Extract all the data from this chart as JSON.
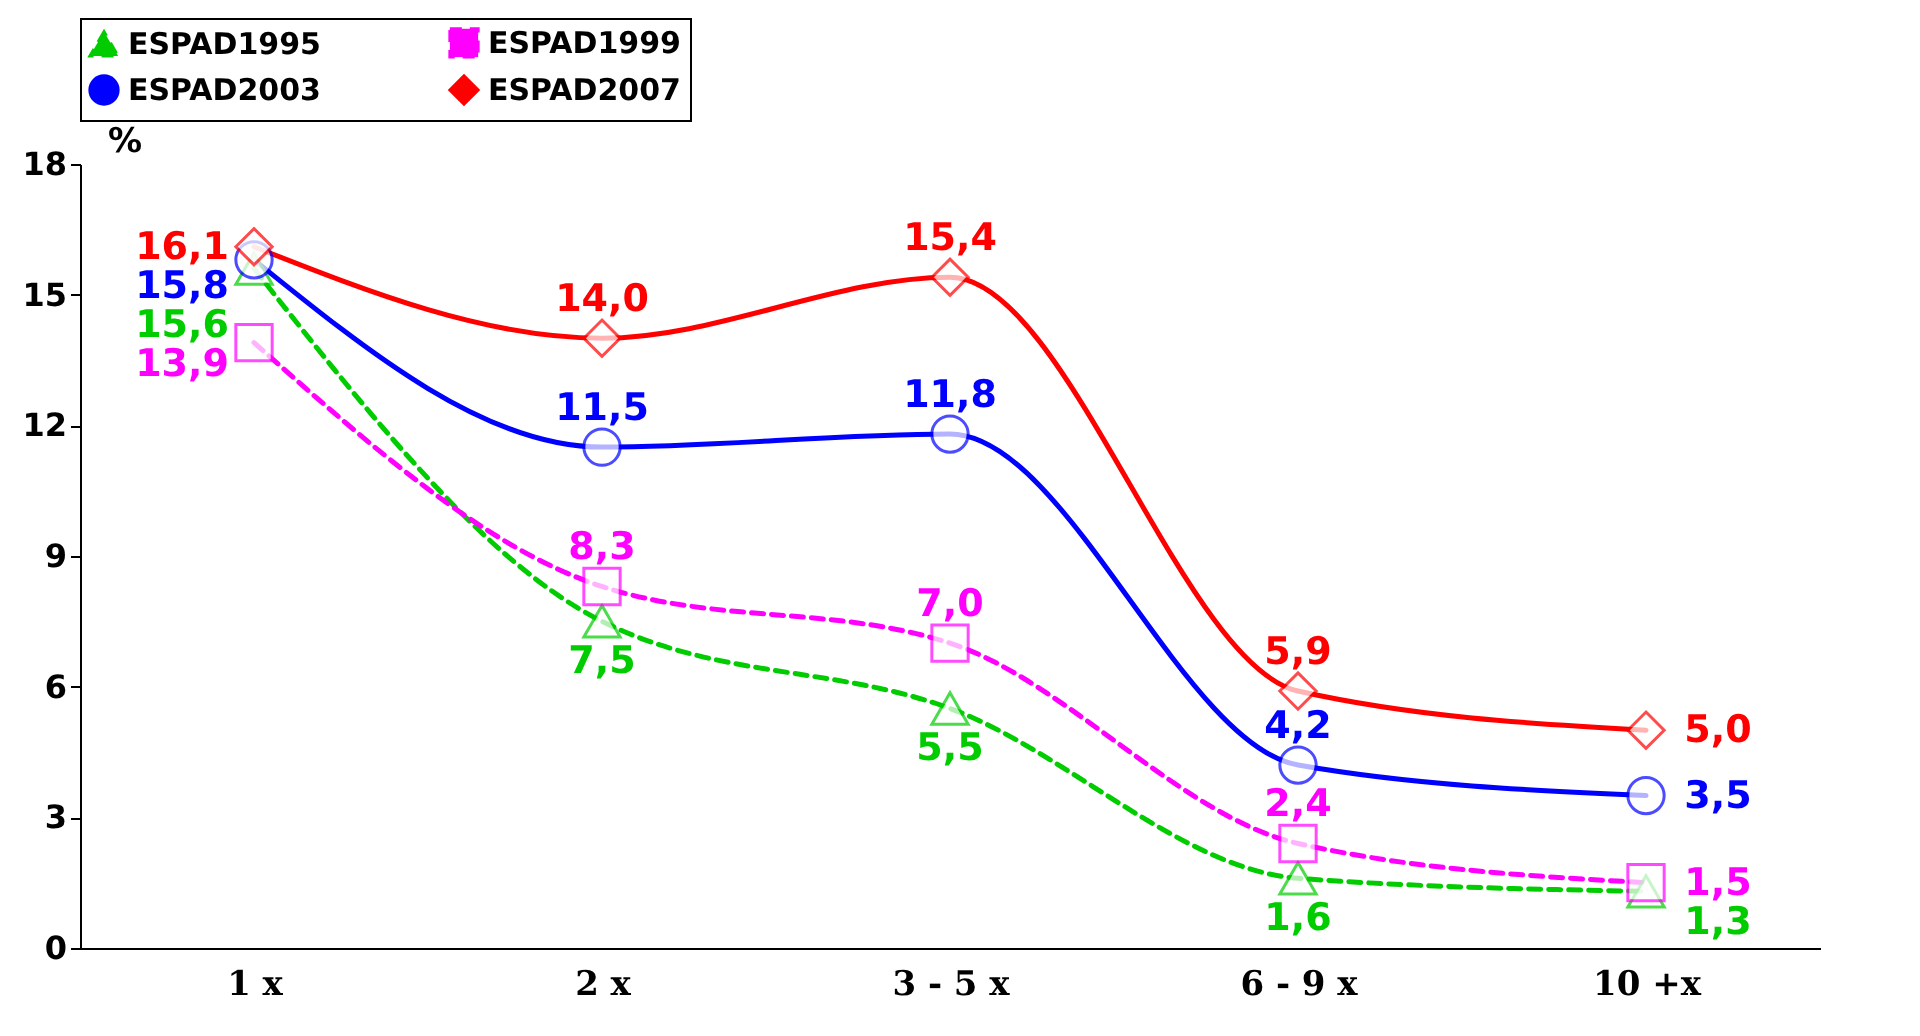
{
  "chart_data": {
    "type": "line",
    "ylabel": "%",
    "categories": [
      "1 x",
      "2 x",
      "3 - 5 x",
      "6 - 9 x",
      "10 +x"
    ],
    "series": [
      {
        "name": "ESPAD1995",
        "color": "#00cc00",
        "marker": "triangle",
        "line_style": "dashed",
        "values": [
          15.6,
          7.5,
          5.5,
          1.6,
          1.3
        ],
        "value_labels": [
          "15,6",
          "7,5",
          "5,5",
          "1,6",
          "1,3"
        ]
      },
      {
        "name": "ESPAD1999",
        "color": "#ff00ff",
        "marker": "square",
        "line_style": "dashed",
        "values": [
          13.9,
          8.3,
          7.0,
          2.4,
          1.5
        ],
        "value_labels": [
          "13,9",
          "8,3",
          "7,0",
          "2,4",
          "1,5"
        ]
      },
      {
        "name": "ESPAD2003",
        "color": "#0000ff",
        "marker": "circle",
        "line_style": "solid",
        "values": [
          15.8,
          11.5,
          11.8,
          4.2,
          3.5
        ],
        "value_labels": [
          "15,8",
          "11,5",
          "11,8",
          "4,2",
          "3,5"
        ]
      },
      {
        "name": "ESPAD2007",
        "color": "#ff0000",
        "marker": "diamond",
        "line_style": "solid",
        "values": [
          16.1,
          14.0,
          15.4,
          5.9,
          5.0
        ],
        "value_labels": [
          "16,1",
          "14,0",
          "15,4",
          "5,9",
          "5,0"
        ]
      }
    ],
    "ylim": [
      0,
      18
    ],
    "yticks": [
      0,
      3,
      6,
      9,
      12,
      15,
      18
    ],
    "grid": false,
    "legend": "top"
  }
}
